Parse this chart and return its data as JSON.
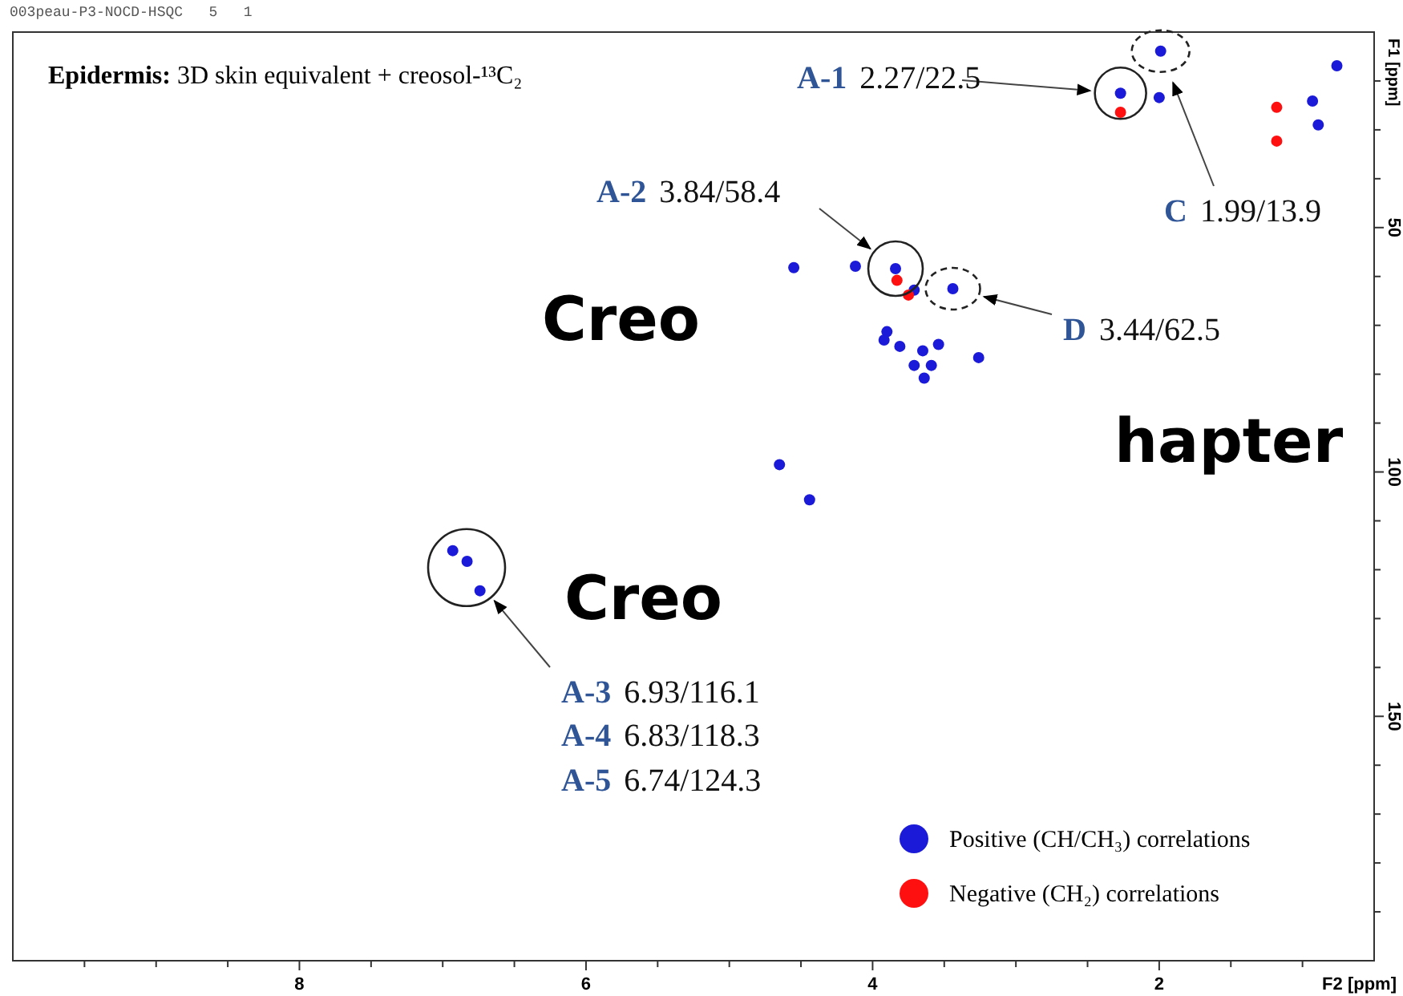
{
  "chart_data": {
    "type": "scatter",
    "title": "Epidermis: 3D skin equivalent + creosol-¹³C₂",
    "xlabel": "F2 [ppm]",
    "ylabel": "F1 [ppm]",
    "xlim": [
      10,
      0.5
    ],
    "ylim": [
      200,
      10
    ],
    "xticks": [
      {
        "value": 9.5,
        "label": null
      },
      {
        "value": 9,
        "label": null
      },
      {
        "value": 8.5,
        "label": null
      },
      8,
      {
        "value": 7.5,
        "label": null
      },
      {
        "value": 7,
        "label": null
      },
      {
        "value": 6.5,
        "label": null
      },
      6,
      {
        "value": 5.5,
        "label": null
      },
      {
        "value": 5,
        "label": null
      },
      {
        "value": 4.5,
        "label": null
      },
      4,
      {
        "value": 3.5,
        "label": null
      },
      {
        "value": 3,
        "label": null
      },
      {
        "value": 2.5,
        "label": null
      },
      2,
      {
        "value": 1.5,
        "label": null
      },
      {
        "value": 1,
        "label": null
      }
    ],
    "yticks": [
      {
        "value": 20,
        "label": null
      },
      {
        "value": 30,
        "label": null
      },
      {
        "value": 40,
        "label": null
      },
      50,
      {
        "value": 60,
        "label": null
      },
      {
        "value": 70,
        "label": null
      },
      {
        "value": 80,
        "label": null
      },
      {
        "value": 90,
        "label": null
      },
      100,
      {
        "value": 110,
        "label": null
      },
      {
        "value": 120,
        "label": null
      },
      {
        "value": 130,
        "label": null
      },
      {
        "value": 140,
        "label": null
      },
      150,
      {
        "value": 160,
        "label": null
      },
      {
        "value": 170,
        "label": null
      },
      {
        "value": 180,
        "label": null
      },
      {
        "value": 190,
        "label": null
      }
    ],
    "grid": false,
    "legend": "bottom right",
    "marker": "circle",
    "series": [
      {
        "name": "Positive (CH/CH₃) correlations",
        "color": "#1a1ad8",
        "x": [
          2.27,
          1.99,
          2.0,
          0.76,
          0.93,
          0.89,
          3.84,
          3.44,
          4.55,
          4.12,
          3.71,
          3.9,
          3.92,
          3.81,
          3.65,
          3.54,
          3.26,
          3.71,
          3.59,
          3.64,
          4.65,
          4.44,
          6.93,
          6.83,
          6.74
        ],
        "values": [
          22.5,
          13.9,
          23.4,
          16.9,
          24.1,
          29.0,
          58.4,
          62.5,
          58.2,
          57.9,
          62.8,
          71.3,
          73.0,
          74.3,
          75.2,
          73.9,
          76.6,
          78.2,
          78.2,
          80.8,
          98.5,
          105.7,
          116.1,
          118.3,
          124.3
        ]
      },
      {
        "name": "Negative (CH₂) correlations",
        "color": "#ff1010",
        "x": [
          1.18,
          1.18,
          2.27,
          3.75,
          3.83
        ],
        "values": [
          25.4,
          32.3,
          26.4,
          63.8,
          60.8
        ]
      }
    ],
    "annotations": [
      "003peau-P3-NOCD-HSQC   5   1",
      "Creo",
      "Creo",
      "hapter",
      "A-1 2.27/22.5",
      "C 1.99/13.9",
      "A-2 3.84/58.4",
      "D 3.44/62.5",
      "A-3 6.93/116.1",
      "A-4 6.83/118.3",
      "A-5 6.74/124.3"
    ]
  }
}
